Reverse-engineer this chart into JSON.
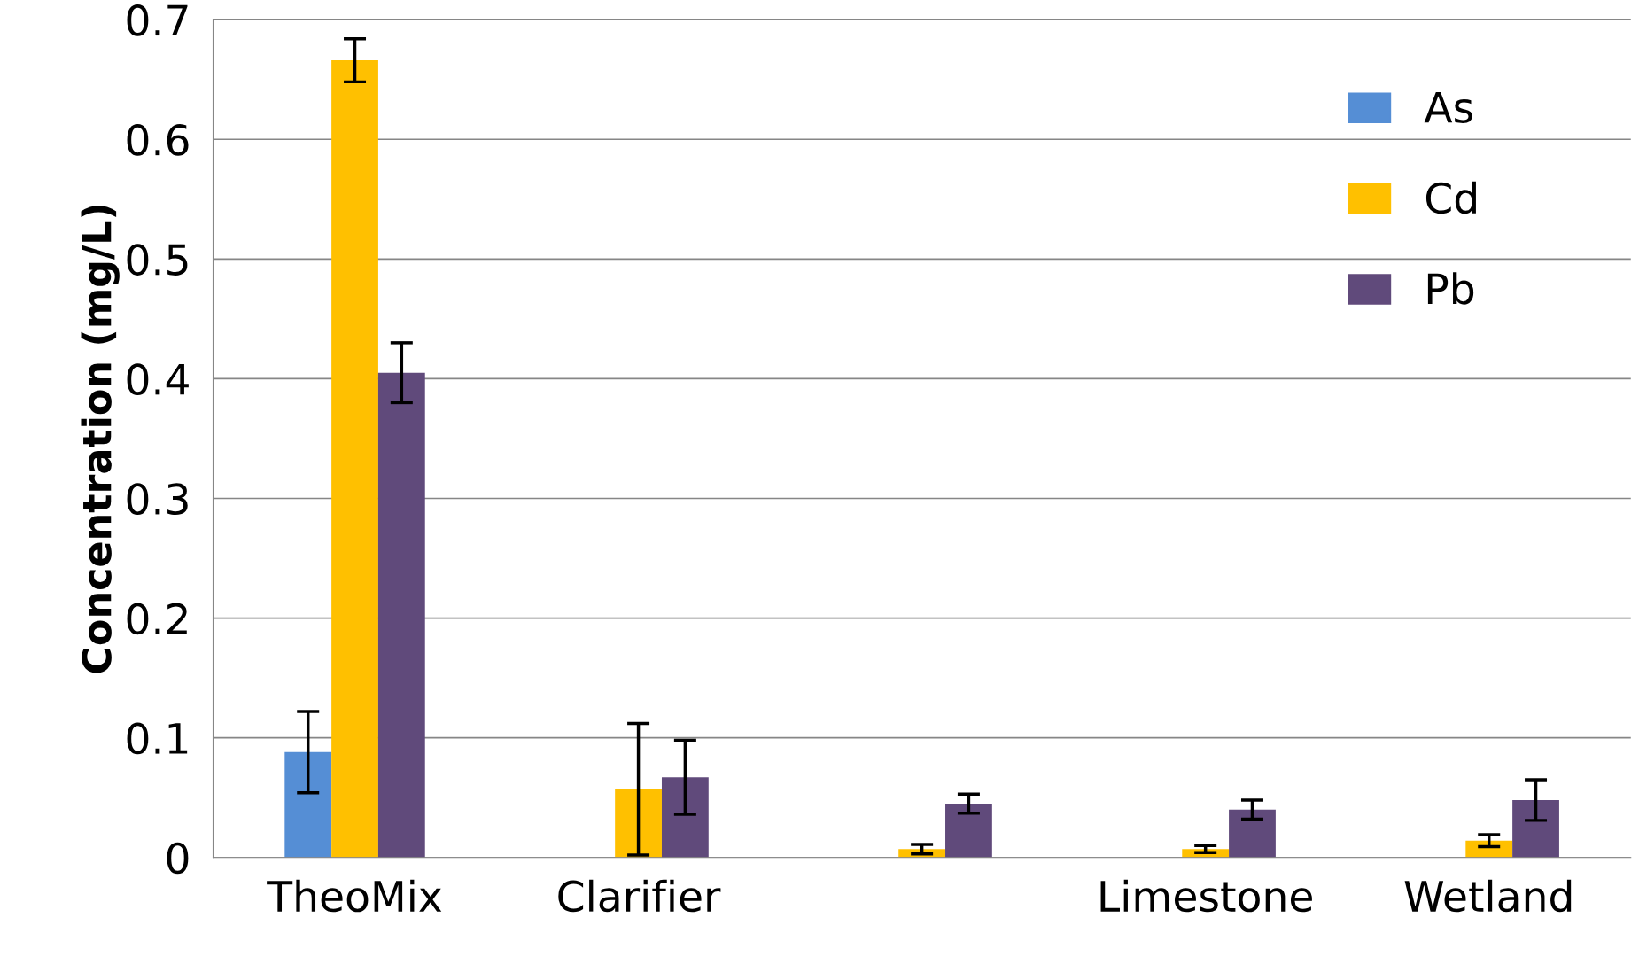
{
  "chart_data": {
    "type": "bar",
    "ylabel": "Concentration (mg/L)",
    "categories": [
      "TheoMix",
      "Clarifier",
      null,
      "Limestone",
      "Wetland"
    ],
    "series": [
      {
        "name": "As",
        "color": "#558ed5",
        "values": [
          0.088,
          null,
          null,
          null,
          null
        ],
        "errors": [
          0.034,
          null,
          null,
          null,
          null
        ]
      },
      {
        "name": "Cd",
        "color": "#ffc000",
        "values": [
          0.666,
          0.057,
          0.007,
          0.007,
          0.014
        ],
        "errors": [
          0.018,
          0.055,
          0.004,
          0.003,
          0.005
        ]
      },
      {
        "name": "Pb",
        "color": "#604a7b",
        "values": [
          0.405,
          0.067,
          0.045,
          0.04,
          0.048
        ],
        "errors": [
          0.025,
          0.031,
          0.008,
          0.008,
          0.017
        ]
      }
    ],
    "ylim": [
      0,
      0.7
    ],
    "yticks": [
      0,
      0.1,
      0.2,
      0.3,
      0.4,
      0.5,
      0.6,
      0.7
    ],
    "grid": "y",
    "legend": "top right"
  }
}
